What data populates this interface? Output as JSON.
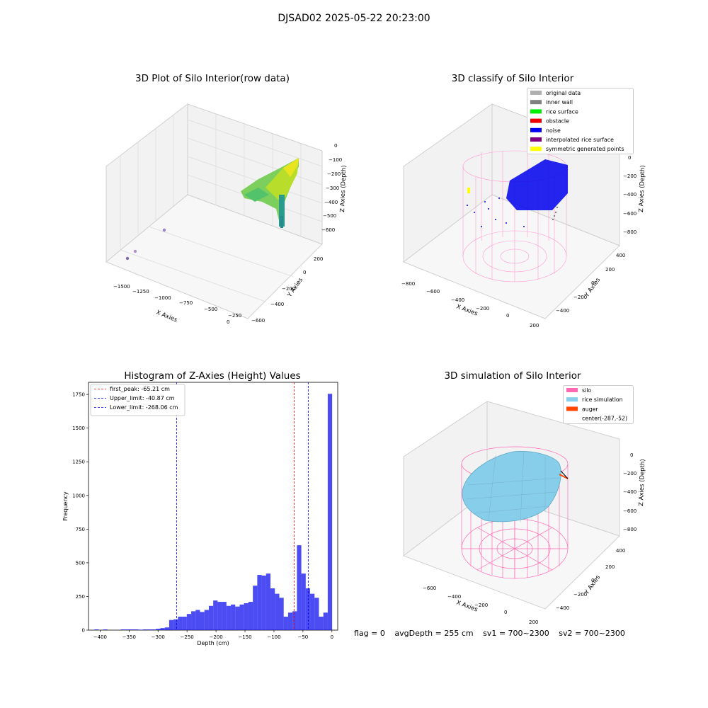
{
  "figure": {
    "suptitle": "DJSAD02 2025-05-22 20:23:00",
    "footer": {
      "flag": "flag = 0",
      "avg_depth": "avgDepth = 255 cm",
      "sv1": "sv1 = 700~2300",
      "sv2": "sv2 = 700~2300"
    }
  },
  "panels": {
    "raw": {
      "title": "3D Plot of Silo Interior(row data)",
      "xlabel": "X Axies",
      "ylabel": "Y Axies",
      "zlabel": "Z Axies (Depth)",
      "xticks": [
        "−1500",
        "−1250",
        "−1000",
        "−750",
        "−500",
        "−250",
        "0"
      ],
      "yticks": [
        "200",
        "0",
        "−200",
        "−400",
        "−600"
      ],
      "zticks": [
        "0",
        "−100",
        "−200",
        "−300",
        "−400",
        "−500",
        "−600"
      ]
    },
    "classify": {
      "title": "3D classify of Silo Interior",
      "xlabel": "X Axies",
      "ylabel": "Y Axies",
      "zlabel": "Z Axies (Depth)",
      "xticks": [
        "−800",
        "−600",
        "−400",
        "−200",
        "0",
        "200"
      ],
      "yticks": [
        "400",
        "200",
        "0",
        "−200",
        "−400"
      ],
      "zticks": [
        "0",
        "−200",
        "−400",
        "−600",
        "−800"
      ],
      "legend": [
        {
          "label": "original data",
          "color": "#b0b0b0"
        },
        {
          "label": "inner wall",
          "color": "#808080"
        },
        {
          "label": "rice surface",
          "color": "#00ee00"
        },
        {
          "label": "obstacle",
          "color": "#ee0000"
        },
        {
          "label": "noise",
          "color": "#0000ee"
        },
        {
          "label": "interpolated rice surface",
          "color": "#800080"
        },
        {
          "label": "symmetric generated points",
          "color": "#ffff00"
        }
      ]
    },
    "simulation": {
      "title": "3D simulation of Silo Interior",
      "xlabel": "X Axies",
      "ylabel": "Y Axies",
      "zlabel": "Z Axies (Depth)",
      "xticks": [
        "−600",
        "−400",
        "−200",
        "0",
        "200"
      ],
      "yticks": [
        "400",
        "200",
        "0",
        "−200",
        "−400"
      ],
      "zticks": [
        "0",
        "−200",
        "−400",
        "−600",
        "−800"
      ],
      "legend": [
        {
          "label": "silo",
          "color": "#ff69b4"
        },
        {
          "label": "rice simulation",
          "color": "#87ceeb"
        },
        {
          "label": "auger",
          "color": "#ff4500"
        },
        {
          "label": "center(-287,-52)",
          "color": ""
        }
      ]
    }
  },
  "chart_data": {
    "type": "bar",
    "title": "Histogram of Z-Axies (Height) Values",
    "xlabel": "Depth (cm)",
    "ylabel": "Frequency",
    "xlim": [
      -420,
      10
    ],
    "ylim": [
      0,
      1840
    ],
    "xticks": [
      -400,
      -350,
      -300,
      -250,
      -200,
      -150,
      -100,
      -50,
      0
    ],
    "yticks": [
      0,
      250,
      500,
      750,
      1000,
      1250,
      1500,
      1750
    ],
    "bar_color": "#0000ee",
    "bins": {
      "width": 7.6,
      "starts": [
        -410,
        -402.4,
        -394.8,
        -387.2,
        -379.6,
        -372,
        -364.4,
        -356.8,
        -349.2,
        -341.6,
        -334,
        -326.4,
        -318.8,
        -311.2,
        -303.6,
        -296,
        -288.4,
        -280.8,
        -273.2,
        -265.6,
        -258,
        -250.4,
        -242.8,
        -235.2,
        -227.6,
        -220,
        -212.4,
        -204.8,
        -197.2,
        -189.6,
        -182,
        -174.4,
        -166.8,
        -159.2,
        -151.6,
        -144,
        -136.4,
        -128.8,
        -121.2,
        -113.6,
        -106,
        -98.4,
        -90.8,
        -83.2,
        -75.6,
        -68,
        -60.4,
        -52.8,
        -45.2,
        -37.6,
        -30,
        -22.4,
        -14.8,
        -7.2
      ],
      "counts": [
        5,
        0,
        5,
        0,
        0,
        0,
        5,
        5,
        5,
        5,
        3,
        5,
        5,
        5,
        10,
        15,
        20,
        75,
        80,
        100,
        100,
        120,
        140,
        150,
        135,
        150,
        180,
        220,
        210,
        210,
        180,
        190,
        175,
        190,
        200,
        210,
        330,
        410,
        405,
        420,
        310,
        270,
        240,
        100,
        130,
        140,
        630,
        420,
        310,
        270,
        240,
        100,
        130,
        1755
      ]
    },
    "lines": [
      {
        "name": "first_peak: -65.21 cm",
        "x": -65.21,
        "color": "#ee0000"
      },
      {
        "name": "Upper_limit: -40.87 cm",
        "x": -40.87,
        "color": "#0000ee"
      },
      {
        "name": "Lower_limit: -268.06 cm",
        "x": -268.06,
        "color": "#0000ee"
      }
    ]
  }
}
